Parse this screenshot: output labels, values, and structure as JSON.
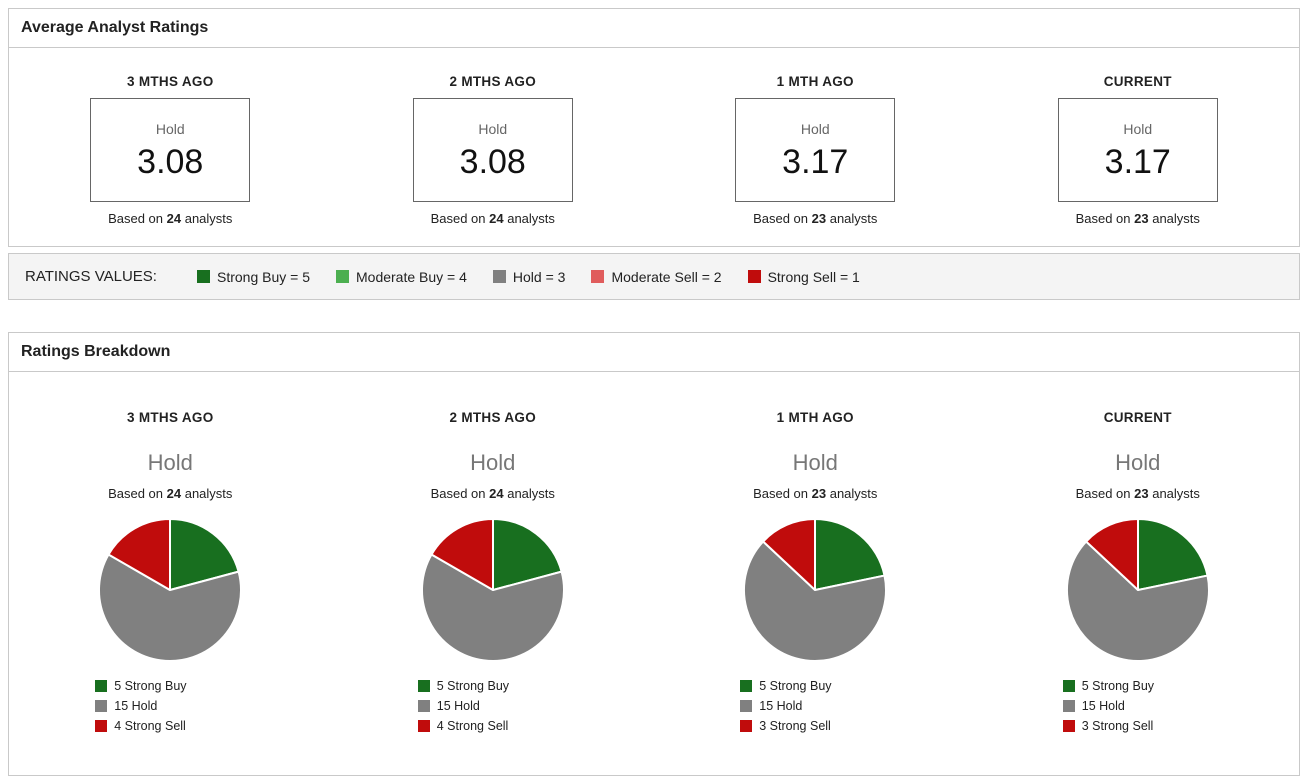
{
  "average_panel": {
    "title": "Average Analyst Ratings",
    "based_prefix": "Based on",
    "based_suffix": "analysts",
    "columns": [
      {
        "period": "3 MTHS AGO",
        "rating_label": "Hold",
        "score": "3.08",
        "analyst_count": "24"
      },
      {
        "period": "2 MTHS AGO",
        "rating_label": "Hold",
        "score": "3.08",
        "analyst_count": "24"
      },
      {
        "period": "1 MTH AGO",
        "rating_label": "Hold",
        "score": "3.17",
        "analyst_count": "23"
      },
      {
        "period": "CURRENT",
        "rating_label": "Hold",
        "score": "3.17",
        "analyst_count": "23"
      }
    ]
  },
  "ratings_values": {
    "label": "RATINGS VALUES:",
    "items": [
      {
        "label": "Strong Buy = 5",
        "color": "#186f1f"
      },
      {
        "label": "Moderate Buy = 4",
        "color": "#4caf50"
      },
      {
        "label": "Hold = 3",
        "color": "#808080"
      },
      {
        "label": "Moderate Sell = 2",
        "color": "#e05c5c"
      },
      {
        "label": "Strong Sell = 1",
        "color": "#c00c0c"
      }
    ]
  },
  "breakdown_panel": {
    "title": "Ratings Breakdown",
    "based_prefix": "Based on",
    "based_suffix": "analysts",
    "columns": [
      {
        "period": "3 MTHS AGO",
        "rating_label": "Hold",
        "analyst_count": "24",
        "legend": [
          {
            "label": "5 Strong Buy",
            "color": "#186f1f"
          },
          {
            "label": "15 Hold",
            "color": "#808080"
          },
          {
            "label": "4 Strong Sell",
            "color": "#c00c0c"
          }
        ]
      },
      {
        "period": "2 MTHS AGO",
        "rating_label": "Hold",
        "analyst_count": "24",
        "legend": [
          {
            "label": "5 Strong Buy",
            "color": "#186f1f"
          },
          {
            "label": "15 Hold",
            "color": "#808080"
          },
          {
            "label": "4 Strong Sell",
            "color": "#c00c0c"
          }
        ]
      },
      {
        "period": "1 MTH AGO",
        "rating_label": "Hold",
        "analyst_count": "23",
        "legend": [
          {
            "label": "5 Strong Buy",
            "color": "#186f1f"
          },
          {
            "label": "15 Hold",
            "color": "#808080"
          },
          {
            "label": "3 Strong Sell",
            "color": "#c00c0c"
          }
        ]
      },
      {
        "period": "CURRENT",
        "rating_label": "Hold",
        "analyst_count": "23",
        "legend": [
          {
            "label": "5 Strong Buy",
            "color": "#186f1f"
          },
          {
            "label": "15 Hold",
            "color": "#808080"
          },
          {
            "label": "3 Strong Sell",
            "color": "#c00c0c"
          }
        ]
      }
    ]
  },
  "chart_data": [
    {
      "type": "pie",
      "title": "3 MTHS AGO",
      "subtitle": "Hold",
      "based_on": 24,
      "labels": [
        "Strong Buy",
        "Hold",
        "Strong Sell"
      ],
      "values": [
        5,
        15,
        4
      ],
      "colors": [
        "#186f1f",
        "#808080",
        "#c00c0c"
      ],
      "legend_position": "bottom",
      "start_angle": "top",
      "direction": "clockwise"
    },
    {
      "type": "pie",
      "title": "2 MTHS AGO",
      "subtitle": "Hold",
      "based_on": 24,
      "labels": [
        "Strong Buy",
        "Hold",
        "Strong Sell"
      ],
      "values": [
        5,
        15,
        4
      ],
      "colors": [
        "#186f1f",
        "#808080",
        "#c00c0c"
      ],
      "legend_position": "bottom",
      "start_angle": "top",
      "direction": "clockwise"
    },
    {
      "type": "pie",
      "title": "1 MTH AGO",
      "subtitle": "Hold",
      "based_on": 23,
      "labels": [
        "Strong Buy",
        "Hold",
        "Strong Sell"
      ],
      "values": [
        5,
        15,
        3
      ],
      "colors": [
        "#186f1f",
        "#808080",
        "#c00c0c"
      ],
      "legend_position": "bottom",
      "start_angle": "top",
      "direction": "clockwise"
    },
    {
      "type": "pie",
      "title": "CURRENT",
      "subtitle": "Hold",
      "based_on": 23,
      "labels": [
        "Strong Buy",
        "Hold",
        "Strong Sell"
      ],
      "values": [
        5,
        15,
        3
      ],
      "colors": [
        "#186f1f",
        "#808080",
        "#c00c0c"
      ],
      "legend_position": "bottom",
      "start_angle": "top",
      "direction": "clockwise"
    }
  ]
}
